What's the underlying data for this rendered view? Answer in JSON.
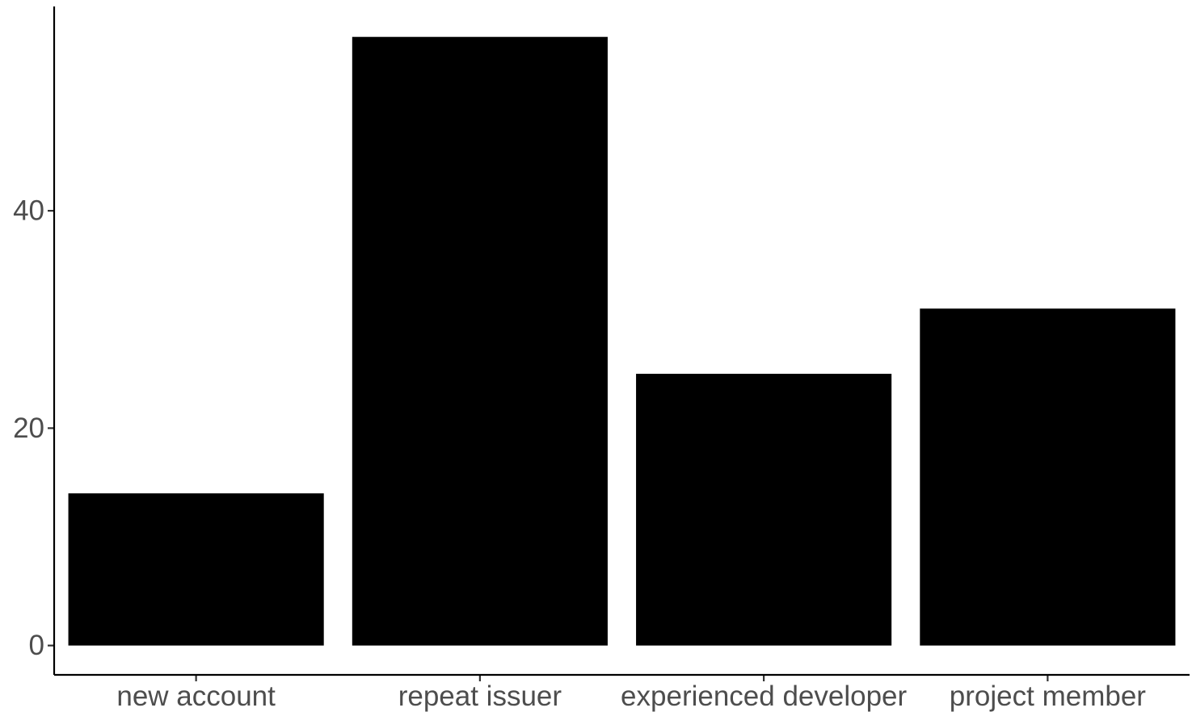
{
  "chart_data": {
    "type": "bar",
    "title": "",
    "xlabel": "",
    "ylabel": "",
    "categories": [
      "new account",
      "repeat issuer",
      "experienced developer",
      "project member"
    ],
    "values": [
      14,
      56,
      25,
      31
    ],
    "ylim": [
      -2.7,
      58.8
    ],
    "yticks": [
      0,
      20,
      40
    ],
    "grid": false,
    "legend": "none",
    "bar_color": "#000000",
    "axis_color": "#000000",
    "tick_label_color": "#4d4d4d"
  }
}
